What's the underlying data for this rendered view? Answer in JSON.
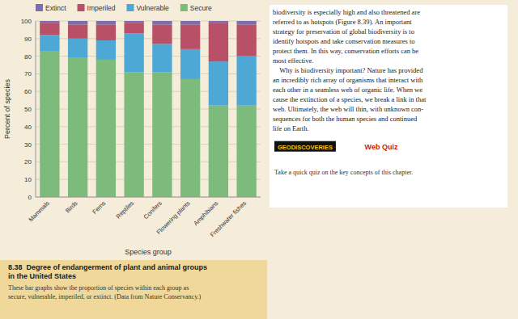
{
  "chart_data": {
    "type": "bar",
    "stacked": true,
    "grid": true,
    "legend": "top",
    "title": "8.38  Degree of endangerment of plant and animal groups\nin the United States",
    "subtitle": "These bar graphs show the proportion of species within each group as\nsecure, vulnerable, imperiled, or extinct. (Data from Nature Conservancy.)",
    "x_label": "Species group",
    "y_label": "Percent of species",
    "categories": [
      "Mammals",
      "Birds",
      "Ferns",
      "Reptiles",
      "Conifers",
      "Flowering plants",
      "Amphibians",
      "Freshwater fishes"
    ],
    "series": [
      {
        "name": "Secure",
        "color": "#7dbb7d",
        "values": [
          83,
          79,
          78,
          71,
          71,
          67,
          52,
          52
        ]
      },
      {
        "name": "Vulnerable",
        "color": "#4da8d6",
        "values": [
          9,
          11,
          11,
          22,
          16,
          17,
          25,
          28
        ]
      },
      {
        "name": "Imperiled",
        "color": "#b85068",
        "values": [
          7,
          8,
          9,
          6,
          11,
          14,
          22,
          18
        ]
      },
      {
        "name": "Extinct",
        "color": "#7b6eb0",
        "values": [
          1,
          2,
          2,
          1,
          2,
          2,
          1,
          2
        ]
      }
    ],
    "ylim": [
      0,
      100
    ],
    "yticks": [
      0,
      10,
      20,
      30,
      40,
      50,
      60,
      70,
      80,
      90,
      100
    ],
    "annotations": [
      "biodiversity is especially high and also threatened are",
      "referred to as hotspots (Figure 8.39). An important",
      "strategy for preservation of global biodiversity is to",
      "identify hotspots and take conservation measures to",
      "protect them. In this way, conservation efforts can be",
      "most effective.",
      "    Why is biodiversity important? Nature has provided",
      "an incredibly rich array of organisms that interact with",
      "each other in a seamless web of organic life. When we",
      "cause the extinction of a species, we break a link in that",
      "web. Ultimately, the web will thin, with unknown con-",
      "sequences for both the human species and continued",
      "life on Earth.",
      "GEODISCOVERIES",
      "Web Quiz",
      "Take a quick quiz on the key concepts of this chapter."
    ]
  }
}
